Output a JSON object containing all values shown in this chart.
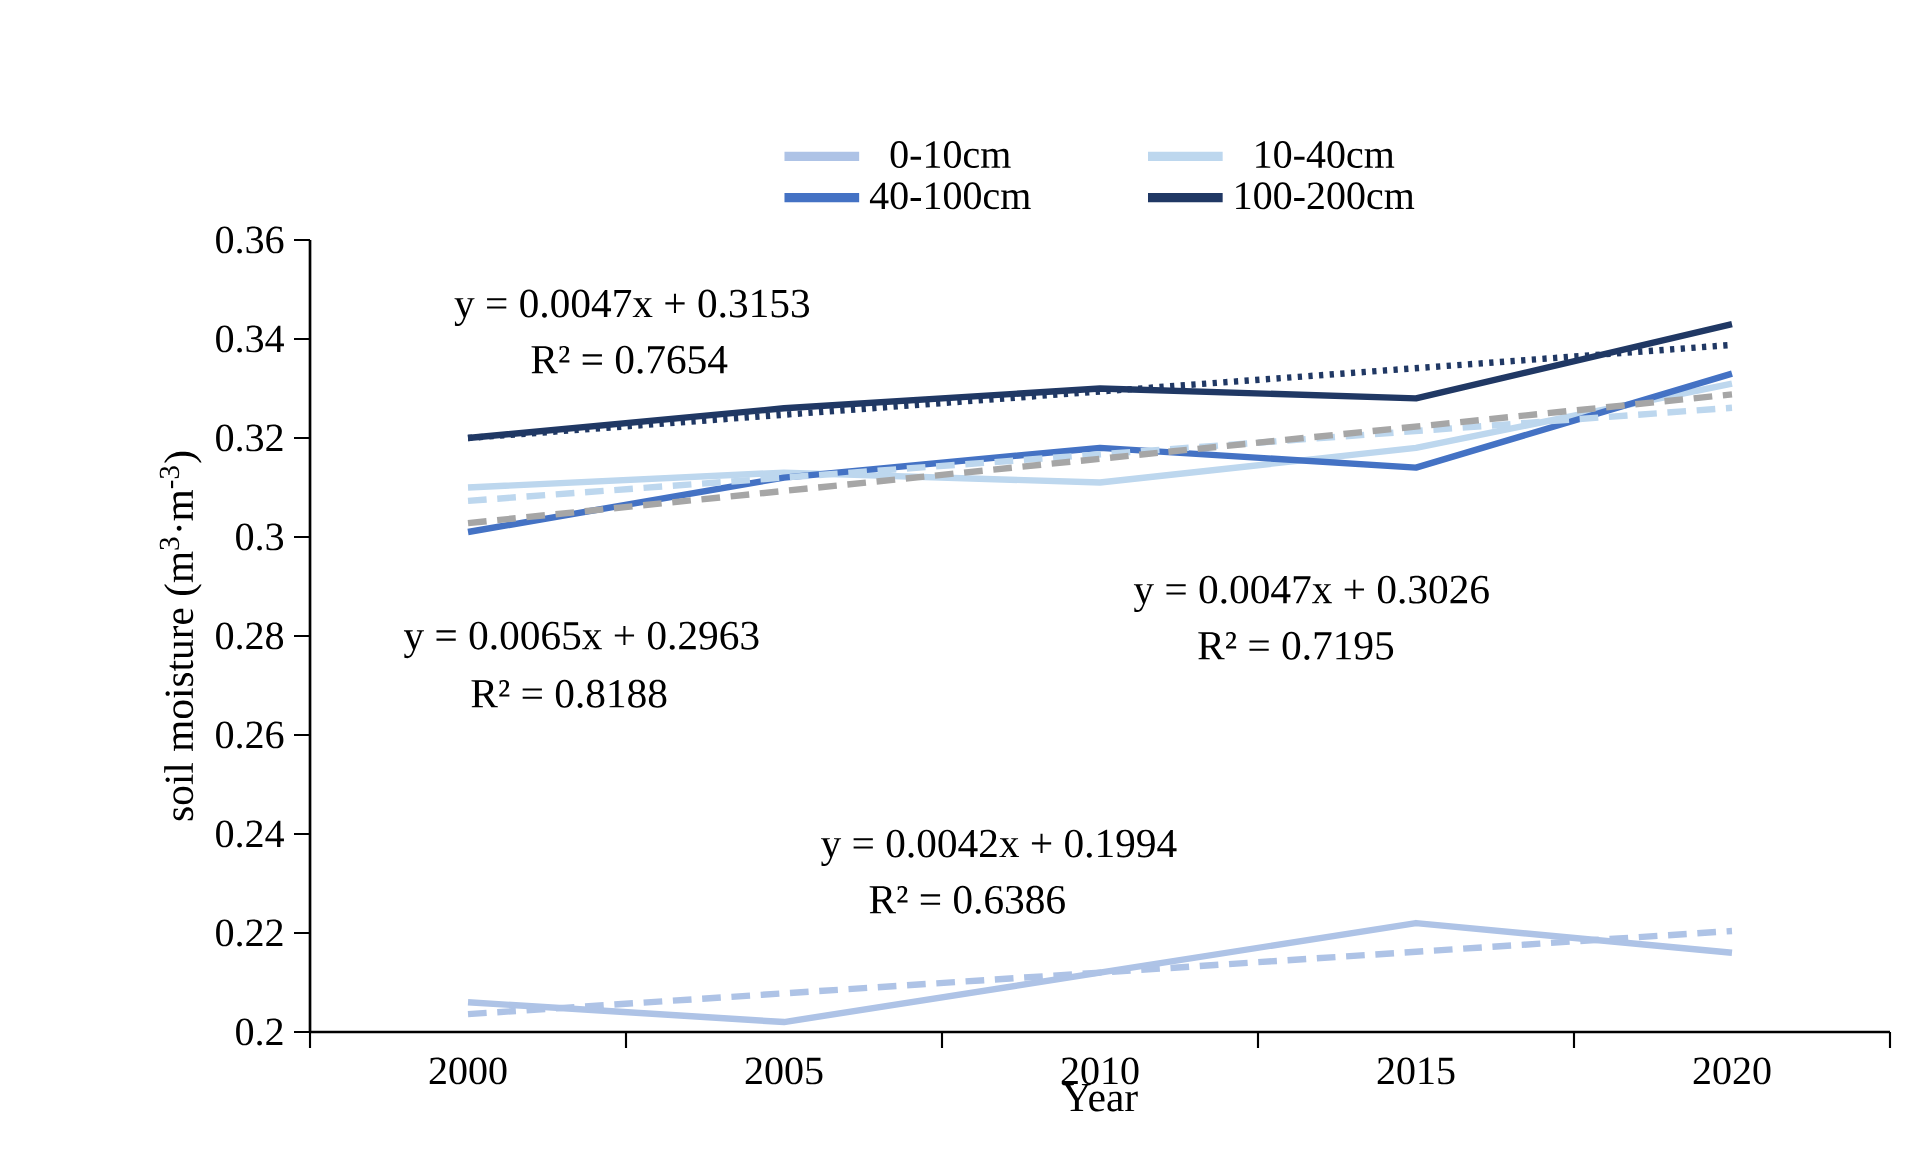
{
  "chart_data": {
    "type": "line",
    "xlabel": "Year",
    "ylabel": "soil moisture (m$^{3}$·m$^{-3}$)",
    "categories": [
      "2000",
      "2005",
      "2010",
      "2015",
      "2020"
    ],
    "series": [
      {
        "name": "0-10cm",
        "color": "#aec3e6",
        "values": [
          0.206,
          0.202,
          0.212,
          0.222,
          0.216
        ]
      },
      {
        "name": "10-40cm",
        "color": "#bdd7ee",
        "values": [
          0.31,
          0.313,
          0.311,
          0.318,
          0.331
        ]
      },
      {
        "name": "40-100cm",
        "color": "#4472c4",
        "values": [
          0.301,
          0.312,
          0.318,
          0.314,
          0.333
        ]
      },
      {
        "name": "100-200cm",
        "color": "#203864",
        "values": [
          0.32,
          0.326,
          0.33,
          0.328,
          0.343
        ]
      },
      {
        "color": "#aec3e6",
        "line_style": "dashed",
        "values": [
          0.2036,
          0.2078,
          0.212,
          0.2162,
          0.2204
        ]
      },
      {
        "color": "#bdd7ee",
        "line_style": "dashed",
        "values": [
          0.3073,
          0.312,
          0.3167,
          0.3214,
          0.3261
        ]
      },
      {
        "color": "#a6a6a6",
        "line_style": "dashed",
        "values": [
          0.3028,
          0.3093,
          0.3158,
          0.3223,
          0.3288
        ]
      },
      {
        "color": "#203864",
        "line_style": "dotted",
        "values": [
          0.32,
          0.3247,
          0.3294,
          0.3341,
          0.3388
        ]
      }
    ],
    "ylim": [
      0.2,
      0.36
    ],
    "yticks": [
      0.2,
      0.22,
      0.24,
      0.26,
      0.28,
      0.3,
      0.32,
      0.34,
      0.36
    ],
    "legend": "top",
    "grid": false,
    "marker": "none",
    "line_style": "solid",
    "annotations": [
      "y = 0.0047x + 0.3153",
      "R² = 0.7654",
      "y = 0.0065x + 0.2963",
      "R² = 0.8188",
      "y = 0.0047x + 0.3026",
      "R² = 0.7195",
      "y = 0.0042x + 0.1994",
      "R² = 0.6386"
    ]
  }
}
